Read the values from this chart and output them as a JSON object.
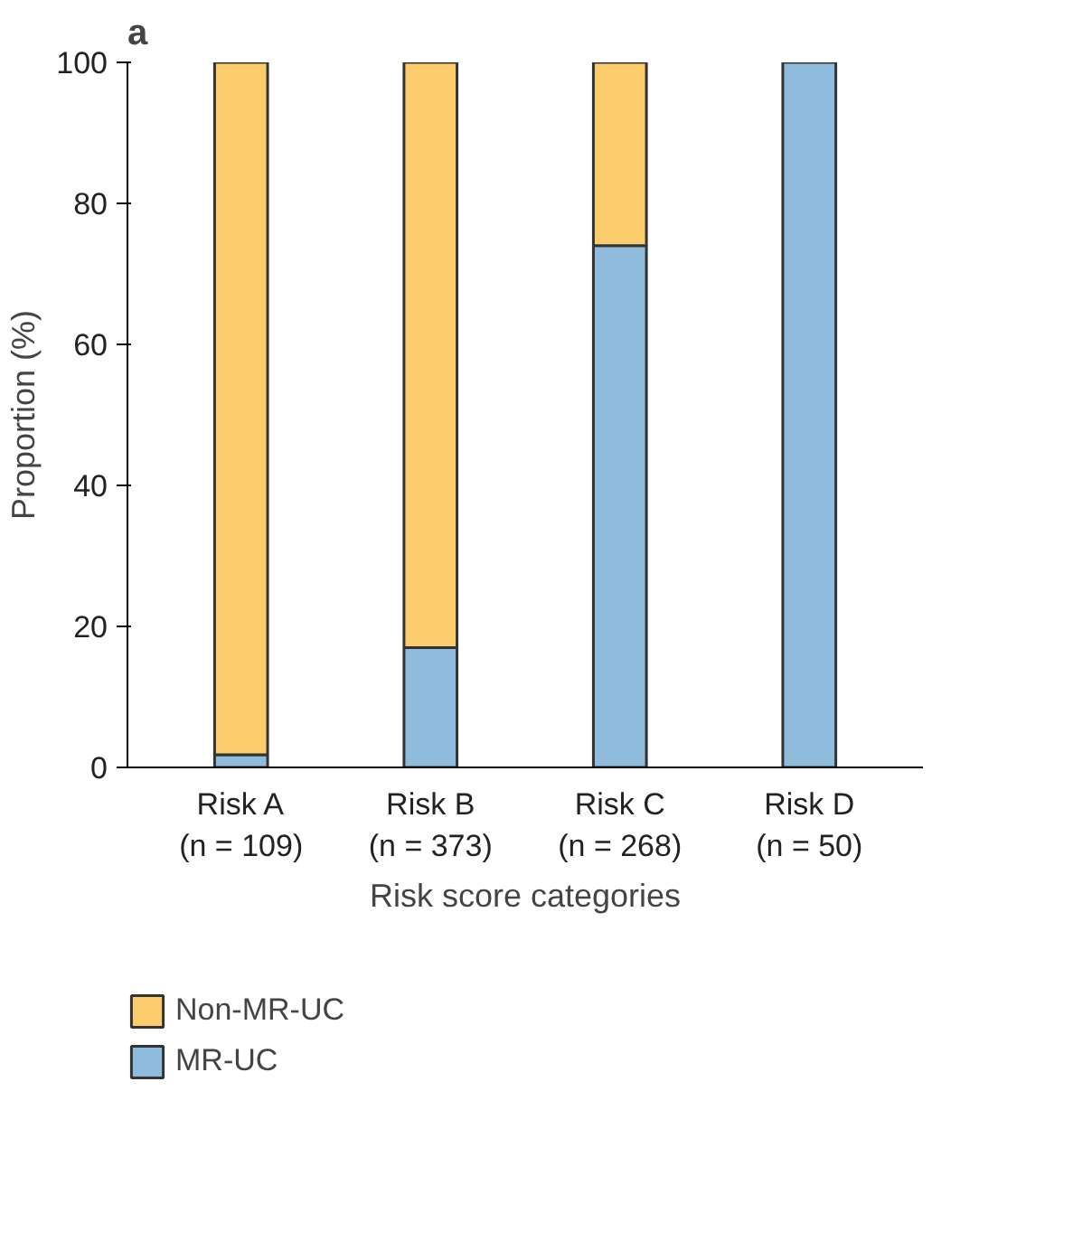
{
  "chart_data": {
    "type": "bar",
    "stacked": true,
    "categories": [
      "Risk A\n(n = 109)",
      "Risk B\n(n = 373)",
      "Risk C\n(n = 268)",
      "Risk D\n(n = 50)"
    ],
    "series": [
      {
        "name": "MR-UC",
        "color": "#8fbcdc",
        "values": [
          1.8,
          17,
          74,
          100
        ]
      },
      {
        "name": "Non-MR-UC",
        "color": "#fbcb6c",
        "values": [
          98.2,
          83,
          26,
          0
        ]
      }
    ],
    "xlabel": "Risk score categories",
    "ylabel": "Proportion (%)",
    "ylim": [
      0,
      100
    ],
    "yticks": [
      0,
      20,
      40,
      60,
      80,
      100
    ],
    "grid": false,
    "legend": "bottom left",
    "annotations": [
      "a"
    ]
  }
}
